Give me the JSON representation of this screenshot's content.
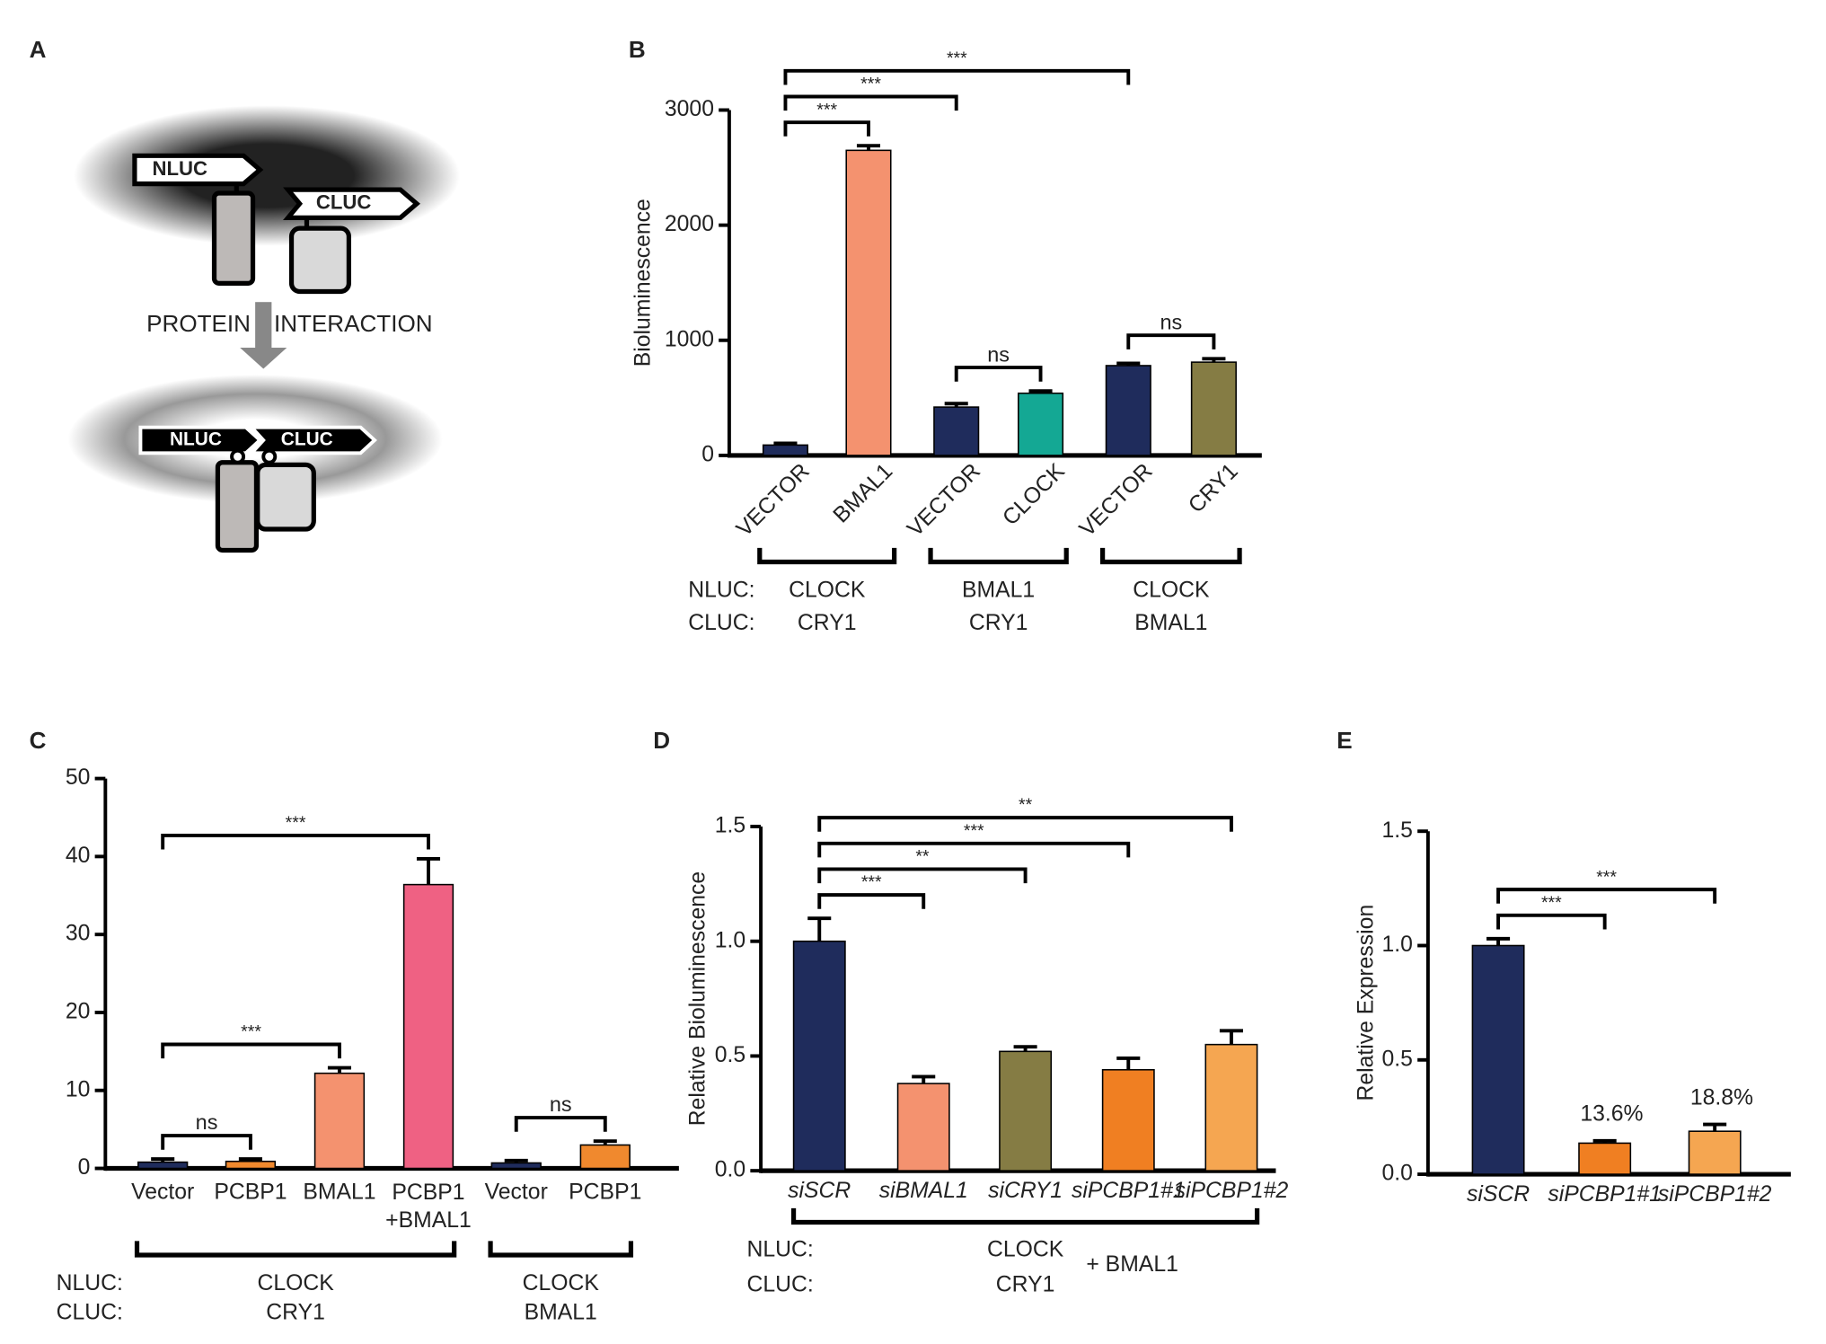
{
  "diagram": {
    "panel": "A",
    "top_nluc": "NLUC",
    "top_cluc": "CLUC",
    "arrow_left": "PROTEIN",
    "arrow_right": "INTERACTION",
    "bottom_nluc": "NLUC",
    "bottom_cluc": "CLUC"
  },
  "chart_data": [
    {
      "type": "bar",
      "panel": "B",
      "ylabel": "Bioluminescence",
      "categories": [
        "VECTOR",
        "BMAL1",
        "VECTOR",
        "CLOCK",
        "VECTOR",
        "CRY1"
      ],
      "values": [
        90,
        2650,
        420,
        540,
        780,
        810
      ],
      "errors": [
        15,
        40,
        30,
        20,
        20,
        30
      ],
      "colors": [
        "#1f2c5c",
        "#f4926f",
        "#1f2c5c",
        "#14a894",
        "#1f2c5c",
        "#857c44"
      ],
      "ylim": [
        0,
        3000
      ],
      "yticks": [
        0,
        1000,
        2000,
        3000
      ],
      "annotations": [
        {
          "from": 0,
          "to": 1,
          "label": "***"
        },
        {
          "from": 0,
          "to": 2,
          "label": "***"
        },
        {
          "from": 0,
          "to": 4,
          "label": "***"
        },
        {
          "from": 2,
          "to": 3,
          "label": "ns"
        },
        {
          "from": 4,
          "to": 5,
          "label": "ns"
        }
      ],
      "row_labels": [
        "NLUC:",
        "CLUC:"
      ],
      "groups": [
        {
          "from": 0,
          "to": 1,
          "nluc": "CLOCK",
          "cluc": "CRY1"
        },
        {
          "from": 2,
          "to": 3,
          "nluc": "BMAL1",
          "cluc": "CRY1"
        },
        {
          "from": 4,
          "to": 5,
          "nluc": "CLOCK",
          "cluc": "BMAL1"
        }
      ]
    },
    {
      "type": "bar",
      "panel": "C",
      "categories": [
        "Vector",
        "PCBP1",
        "BMAL1",
        "PCBP1\n+BMAL1",
        "Vector",
        "PCBP1"
      ],
      "values": [
        0.8,
        0.9,
        12.2,
        36.4,
        0.7,
        3
      ],
      "errors": [
        0.4,
        0.3,
        0.7,
        3.3,
        0.3,
        0.5
      ],
      "colors": [
        "#1f2c5c",
        "#f0892e",
        "#f4926f",
        "#ef6183",
        "#1f2c5c",
        "#f0892e"
      ],
      "ylim": [
        0,
        50
      ],
      "yticks": [
        0,
        10,
        20,
        30,
        40,
        50
      ],
      "annotations": [
        {
          "from": 0,
          "to": 1,
          "label": "ns"
        },
        {
          "from": 0,
          "to": 2,
          "label": "***"
        },
        {
          "from": 0,
          "to": 3,
          "label": "***"
        },
        {
          "from": 4,
          "to": 5,
          "label": "ns"
        }
      ],
      "row_labels": [
        "NLUC:",
        "CLUC:"
      ],
      "groups": [
        {
          "from": 0,
          "to": 3,
          "nluc": "CLOCK",
          "cluc": "CRY1"
        },
        {
          "from": 4,
          "to": 5,
          "nluc": "CLOCK",
          "cluc": "BMAL1"
        }
      ]
    },
    {
      "type": "bar",
      "panel": "D",
      "ylabel": "Relative Bioluminescence",
      "categories": [
        "siSCR",
        "siBMAL1",
        "siCRY1",
        "siPCBP1#1",
        "siPCBP1#2"
      ],
      "values": [
        1.0,
        0.38,
        0.52,
        0.44,
        0.55
      ],
      "errors": [
        0.1,
        0.03,
        0.02,
        0.05,
        0.06
      ],
      "colors": [
        "#1f2c5c",
        "#f4926f",
        "#857c44",
        "#f07f22",
        "#f5a651"
      ],
      "ylim": [
        0,
        1.5
      ],
      "yticks": [
        {
          "value": 0,
          "label": "0.0"
        },
        0.5,
        {
          "value": 1,
          "label": "1.0"
        },
        1.5
      ],
      "annotations": [
        {
          "from": 0,
          "to": 1,
          "label": "***"
        },
        {
          "from": 0,
          "to": 2,
          "label": "**"
        },
        {
          "from": 0,
          "to": 3,
          "label": "***"
        },
        {
          "from": 0,
          "to": 4,
          "label": "**"
        }
      ],
      "row_labels": [
        "NLUC:",
        "CLUC:"
      ],
      "groups": [
        {
          "from": 0,
          "to": 4,
          "nluc": "CLOCK",
          "cluc": "CRY1",
          "extra": "+ BMAL1"
        }
      ]
    },
    {
      "type": "bar",
      "panel": "E",
      "ylabel": "Relative Expression",
      "categories": [
        "siSCR",
        "siPCBP1#1",
        "siPCBP1#2"
      ],
      "values": [
        1.0,
        0.136,
        0.188
      ],
      "errors": [
        0.03,
        0.01,
        0.03
      ],
      "value_labels": [
        null,
        "13.6%",
        "18.8%"
      ],
      "colors": [
        "#1f2c5c",
        "#f07f22",
        "#f5a651"
      ],
      "ylim": [
        0,
        1.5
      ],
      "yticks": [
        {
          "value": 0,
          "label": "0.0"
        },
        0.5,
        {
          "value": 1,
          "label": "1.0"
        },
        1.5
      ],
      "annotations": [
        {
          "from": 0,
          "to": 1,
          "label": "***"
        },
        {
          "from": 0,
          "to": 2,
          "label": "***"
        }
      ]
    }
  ]
}
